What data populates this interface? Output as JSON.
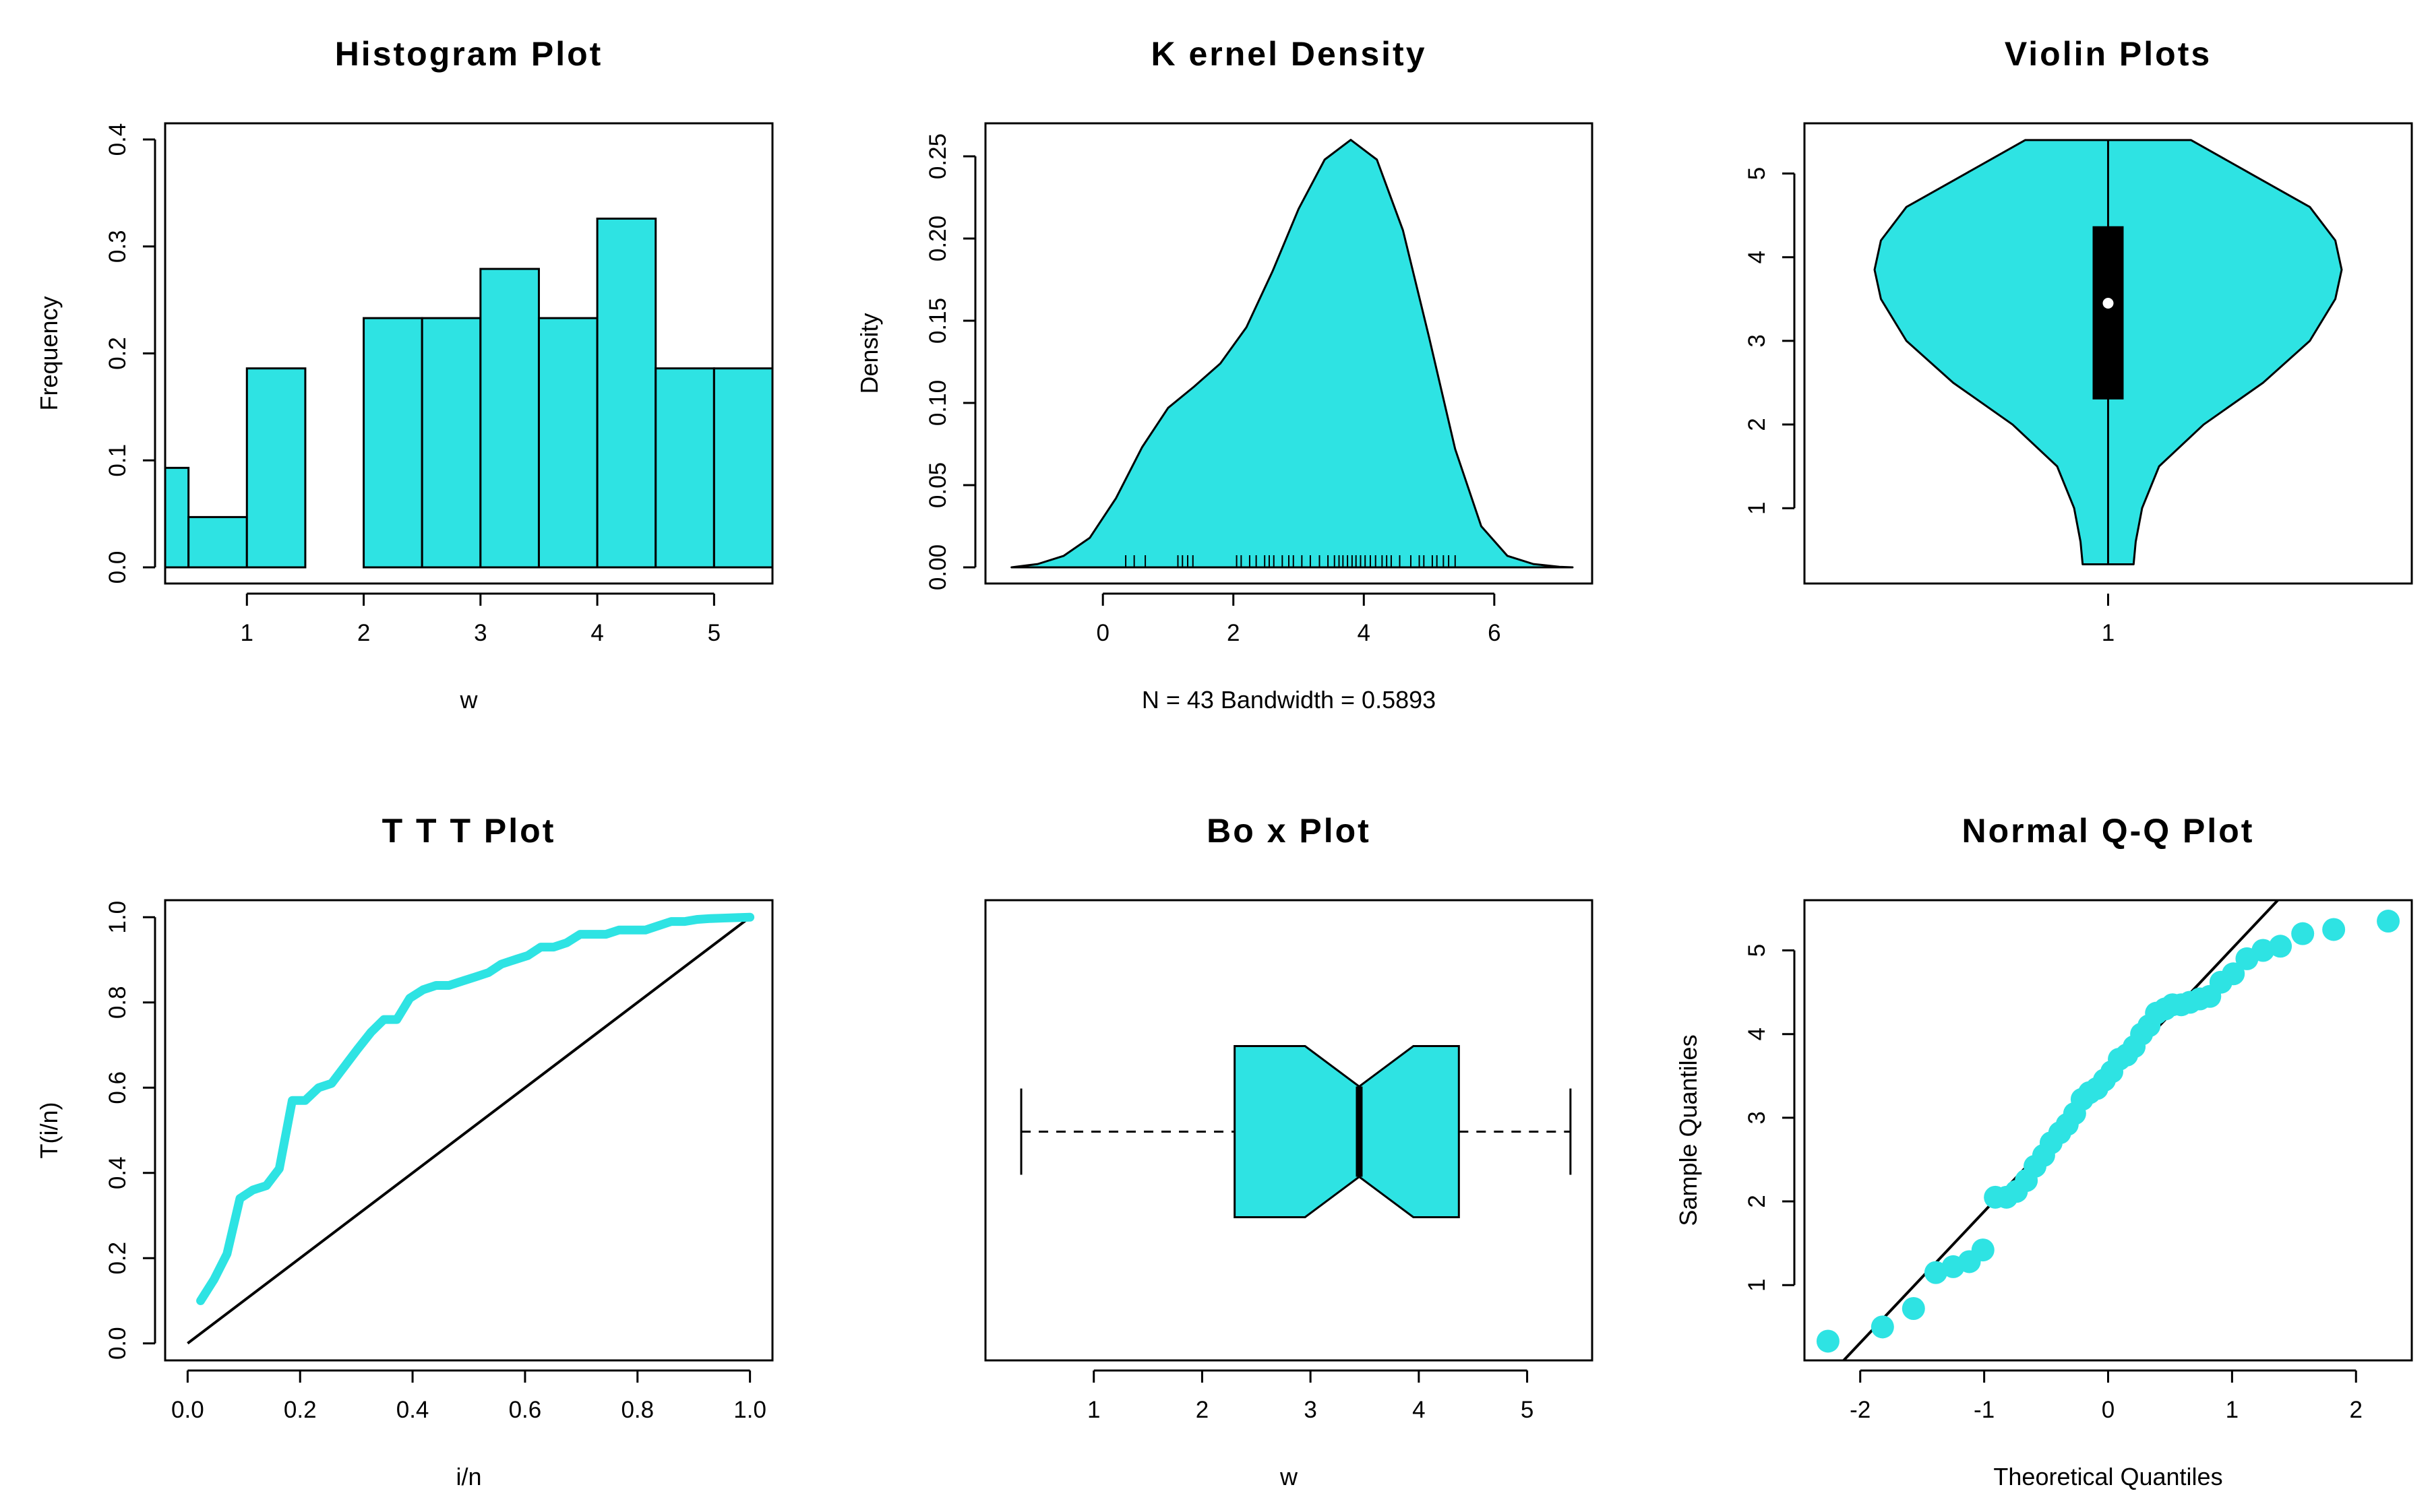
{
  "colors": {
    "fill": "#2ee3e3",
    "stroke": "#000000",
    "background": "#ffffff"
  },
  "chart_data": [
    {
      "id": "histogram",
      "type": "bar",
      "title": "Histogram Plot",
      "xlabel": "w",
      "ylabel": "Frequency",
      "xlim": [
        0.3,
        5.5
      ],
      "ylim": [
        0,
        0.4
      ],
      "xticks": [
        1,
        2,
        3,
        4,
        5
      ],
      "yticks": [
        0.0,
        0.1,
        0.2,
        0.3,
        0.4
      ],
      "bins": [
        {
          "x0": 0.0,
          "x1": 0.5,
          "value": 0.093
        },
        {
          "x0": 0.5,
          "x1": 1.0,
          "value": 0.047
        },
        {
          "x0": 1.0,
          "x1": 1.5,
          "value": 0.186
        },
        {
          "x0": 1.5,
          "x1": 2.0,
          "value": 0.0
        },
        {
          "x0": 2.0,
          "x1": 2.5,
          "value": 0.233
        },
        {
          "x0": 2.5,
          "x1": 3.0,
          "value": 0.233
        },
        {
          "x0": 3.0,
          "x1": 3.5,
          "value": 0.279
        },
        {
          "x0": 3.5,
          "x1": 4.0,
          "value": 0.233
        },
        {
          "x0": 4.0,
          "x1": 4.5,
          "value": 0.326
        },
        {
          "x0": 4.5,
          "x1": 5.0,
          "value": 0.186
        },
        {
          "x0": 5.0,
          "x1": 5.5,
          "value": 0.186
        }
      ]
    },
    {
      "id": "kernel-density",
      "type": "area",
      "title": "K ernel Density",
      "xlabel": "N = 43   Bandwidth = 0.5893",
      "ylabel": "Density",
      "xlim": [
        -1.8,
        7.5
      ],
      "ylim": [
        0,
        0.27
      ],
      "xticks": [
        0,
        2,
        4,
        6
      ],
      "yticks": [
        0.0,
        0.05,
        0.1,
        0.15,
        0.2,
        0.25
      ],
      "ytick_labels": [
        "0.00",
        "0.05",
        "0.10",
        "0.15",
        "0.20",
        "0.25"
      ],
      "curve_x": [
        -1.4,
        -1.0,
        -0.6,
        -0.2,
        0.2,
        0.6,
        1.0,
        1.4,
        1.8,
        2.2,
        2.6,
        3.0,
        3.4,
        3.8,
        4.2,
        4.6,
        5.0,
        5.4,
        5.8,
        6.2,
        6.6,
        7.0,
        7.2
      ],
      "curve_y": [
        0.0,
        0.002,
        0.007,
        0.018,
        0.042,
        0.073,
        0.097,
        0.11,
        0.124,
        0.146,
        0.18,
        0.218,
        0.248,
        0.26,
        0.248,
        0.205,
        0.14,
        0.072,
        0.025,
        0.007,
        0.002,
        0.0003,
        0.0
      ],
      "rug": [
        0.35,
        0.48,
        0.65,
        1.15,
        1.22,
        1.3,
        1.38,
        2.05,
        2.12,
        2.25,
        2.35,
        2.48,
        2.55,
        2.62,
        2.75,
        2.85,
        2.92,
        3.05,
        3.18,
        3.32,
        3.45,
        3.55,
        3.62,
        3.68,
        3.75,
        3.82,
        3.88,
        3.95,
        4.02,
        4.1,
        4.18,
        4.28,
        4.35,
        4.42,
        4.55,
        4.72,
        4.85,
        4.92,
        5.05,
        5.12,
        5.22,
        5.3,
        5.4
      ]
    },
    {
      "id": "violin",
      "type": "violin",
      "title": "Violin Plots",
      "xlabel": "",
      "ylabel": "",
      "xticks": [
        "1"
      ],
      "ylim": [
        0.1,
        5.6
      ],
      "yticks": [
        1,
        2,
        3,
        4,
        5
      ],
      "min": 0.33,
      "max": 5.4,
      "q1": 2.3,
      "median": 3.45,
      "q3": 4.37,
      "profile_y": [
        0.33,
        0.6,
        1.0,
        1.5,
        2.0,
        2.5,
        3.0,
        3.5,
        3.85,
        4.2,
        4.6,
        5.0,
        5.4
      ],
      "profile_halfwidth": [
        0.12,
        0.13,
        0.16,
        0.24,
        0.45,
        0.73,
        0.95,
        1.07,
        1.1,
        1.07,
        0.95,
        0.67,
        0.39
      ]
    },
    {
      "id": "ttt",
      "type": "line",
      "title": "T T T Plot",
      "xlabel": "i/n",
      "ylabel": "T(i/n)",
      "xlim": [
        -0.04,
        1.04
      ],
      "ylim": [
        -0.04,
        1.04
      ],
      "xticks": [
        0.0,
        0.2,
        0.4,
        0.6,
        0.8,
        1.0
      ],
      "yticks": [
        0.0,
        0.2,
        0.4,
        0.6,
        0.8,
        1.0
      ],
      "series": [
        {
          "name": "TTT",
          "x": [
            0.023,
            0.047,
            0.07,
            0.093,
            0.116,
            0.14,
            0.163,
            0.186,
            0.209,
            0.233,
            0.256,
            0.279,
            0.302,
            0.326,
            0.349,
            0.372,
            0.395,
            0.419,
            0.442,
            0.465,
            0.488,
            0.512,
            0.535,
            0.558,
            0.581,
            0.605,
            0.628,
            0.651,
            0.674,
            0.698,
            0.721,
            0.744,
            0.767,
            0.791,
            0.814,
            0.837,
            0.86,
            0.884,
            0.907,
            0.93,
            0.953,
            0.977,
            1.0
          ],
          "y": [
            0.1,
            0.15,
            0.21,
            0.34,
            0.36,
            0.37,
            0.41,
            0.57,
            0.57,
            0.6,
            0.61,
            0.65,
            0.69,
            0.73,
            0.76,
            0.76,
            0.81,
            0.83,
            0.84,
            0.84,
            0.85,
            0.86,
            0.87,
            0.89,
            0.9,
            0.91,
            0.93,
            0.93,
            0.94,
            0.96,
            0.96,
            0.96,
            0.97,
            0.97,
            0.97,
            0.98,
            0.99,
            0.99,
            0.995,
            0.997,
            0.998,
            0.999,
            1.0
          ]
        },
        {
          "name": "Reference",
          "x": [
            0.0,
            1.0
          ],
          "y": [
            0.0,
            1.0
          ]
        }
      ]
    },
    {
      "id": "boxplot",
      "type": "box",
      "title": "Bo x Plot",
      "xlabel": "w",
      "xlim": [
        0.0,
        5.6
      ],
      "xticks": [
        1,
        2,
        3,
        4,
        5
      ],
      "min": 0.33,
      "q1": 2.3,
      "median": 3.45,
      "q3": 4.37,
      "max": 5.4,
      "notch_low": 2.95,
      "notch_high": 3.95
    },
    {
      "id": "qq",
      "type": "scatter",
      "title": "Normal Q-Q Plot",
      "xlabel": "Theoretical Quantiles",
      "ylabel": "Sample Quantiles",
      "xlim": [
        -2.45,
        2.45
      ],
      "ylim": [
        0.1,
        5.6
      ],
      "xticks": [
        -2,
        -1,
        0,
        1,
        2
      ],
      "yticks": [
        1,
        2,
        3,
        4,
        5
      ],
      "x": [
        -2.26,
        -1.82,
        -1.57,
        -1.39,
        -1.25,
        -1.12,
        -1.01,
        -0.91,
        -0.82,
        -0.74,
        -0.66,
        -0.59,
        -0.52,
        -0.46,
        -0.39,
        -0.33,
        -0.27,
        -0.21,
        -0.15,
        -0.09,
        -0.03,
        0.03,
        0.09,
        0.15,
        0.21,
        0.27,
        0.33,
        0.39,
        0.46,
        0.52,
        0.59,
        0.66,
        0.74,
        0.82,
        0.91,
        1.01,
        1.12,
        1.25,
        1.39,
        1.57,
        1.82,
        2.26
      ],
      "y": [
        0.33,
        0.5,
        0.72,
        1.15,
        1.22,
        1.28,
        1.42,
        2.05,
        2.05,
        2.12,
        2.25,
        2.42,
        2.55,
        2.7,
        2.82,
        2.92,
        3.05,
        3.22,
        3.3,
        3.35,
        3.45,
        3.55,
        3.7,
        3.75,
        3.85,
        4.0,
        4.1,
        4.25,
        4.3,
        4.35,
        4.35,
        4.38,
        4.42,
        4.45,
        4.62,
        4.72,
        4.9,
        5.0,
        5.05,
        5.2,
        5.25,
        5.35
      ],
      "reference_line": {
        "intercept": 3.45,
        "slope": 1.57
      }
    }
  ]
}
